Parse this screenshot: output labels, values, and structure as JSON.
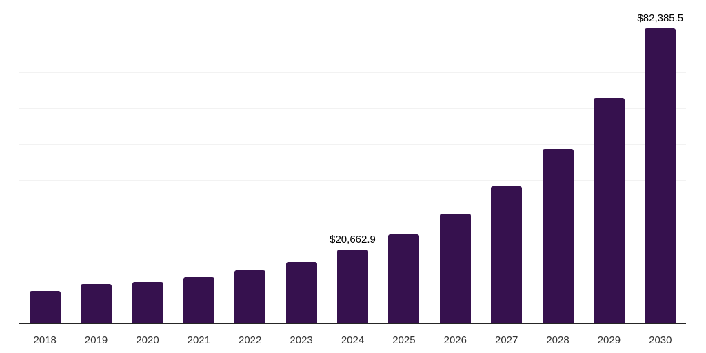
{
  "chart_data": {
    "type": "bar",
    "title": "",
    "xlabel": "",
    "ylabel": "",
    "categories": [
      "2018",
      "2019",
      "2020",
      "2021",
      "2022",
      "2023",
      "2024",
      "2025",
      "2026",
      "2027",
      "2028",
      "2029",
      "2030"
    ],
    "values": [
      9100,
      11000,
      11600,
      12950,
      14900,
      17200,
      20662.9,
      24900,
      30500,
      38300,
      48700,
      62900,
      82385.5
    ],
    "value_labels": {
      "2024": "$20,662.9",
      "2030": "$82,385.5"
    },
    "ylim": [
      0,
      90000
    ],
    "gridline_step": 10000,
    "grid": true,
    "legend_position": "none",
    "colors": {
      "bar": "#36114E",
      "gridline": "#F2F2F2",
      "axis_line": "#262626",
      "tick_label": "#333333",
      "value_label": "#000000",
      "background": "#FFFFFF"
    }
  }
}
